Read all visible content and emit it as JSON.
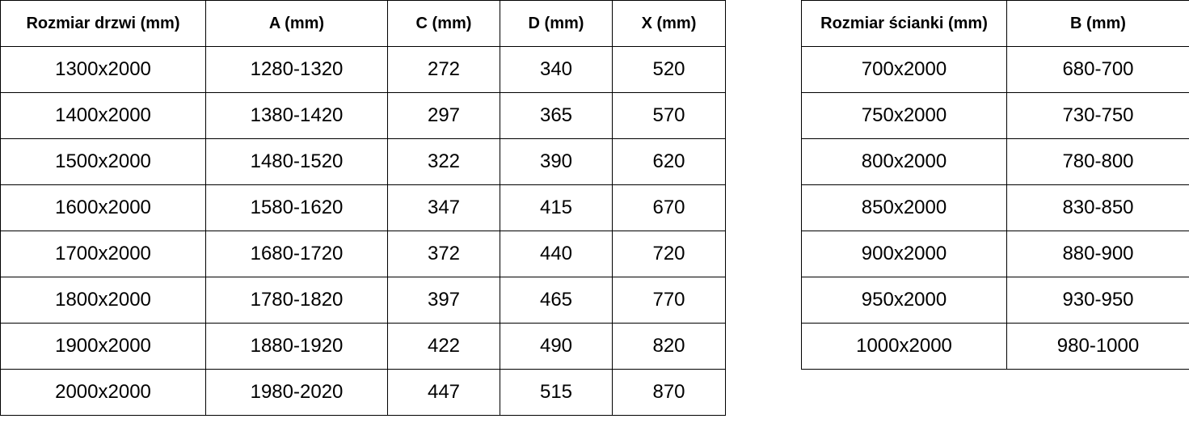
{
  "door_table": {
    "headers": [
      "Rozmiar drzwi (mm)",
      "A (mm)",
      "C (mm)",
      "D (mm)",
      "X (mm)"
    ],
    "rows": [
      [
        "1300x2000",
        "1280-1320",
        "272",
        "340",
        "520"
      ],
      [
        "1400x2000",
        "1380-1420",
        "297",
        "365",
        "570"
      ],
      [
        "1500x2000",
        "1480-1520",
        "322",
        "390",
        "620"
      ],
      [
        "1600x2000",
        "1580-1620",
        "347",
        "415",
        "670"
      ],
      [
        "1700x2000",
        "1680-1720",
        "372",
        "440",
        "720"
      ],
      [
        "1800x2000",
        "1780-1820",
        "397",
        "465",
        "770"
      ],
      [
        "1900x2000",
        "1880-1920",
        "422",
        "490",
        "820"
      ],
      [
        "2000x2000",
        "1980-2020",
        "447",
        "515",
        "870"
      ]
    ]
  },
  "wall_table": {
    "headers": [
      "Rozmiar ścianki (mm)",
      "B (mm)"
    ],
    "rows": [
      [
        "700x2000",
        "680-700"
      ],
      [
        "750x2000",
        "730-750"
      ],
      [
        "800x2000",
        "780-800"
      ],
      [
        "850x2000",
        "830-850"
      ],
      [
        "900x2000",
        "880-900"
      ],
      [
        "950x2000",
        "930-950"
      ],
      [
        "1000x2000",
        "980-1000"
      ]
    ]
  }
}
